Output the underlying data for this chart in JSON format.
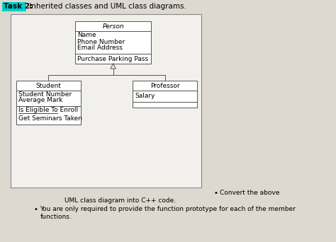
{
  "title_bold": "Task 2:",
  "title_normal": " Inherited classes and UML class diagrams.",
  "bg_color": "#ddd8d0",
  "diagram_bg": "#f0eeea",
  "box_color": "#ffffff",
  "border_color": "#555555",
  "person_name": "Person",
  "person_attrs": [
    "Name",
    "Phone Number",
    "Email Address"
  ],
  "person_methods": [
    "Purchase Parking Pass"
  ],
  "student_name": "Student",
  "student_attrs": [
    "Student Number",
    "Average Mark"
  ],
  "student_methods": [
    "Is Eligible To Enroll",
    "Get Seminars Taken"
  ],
  "professor_name": "Professor",
  "professor_attrs": [
    "Salary"
  ],
  "professor_methods": [],
  "bullet1_part1": "Convert the above",
  "bullet1_part2": "UML class diagram into C++ code.",
  "bullet2_line1": "You are only required to provide the function prototype for each of the member",
  "bullet2_line2": "functions.",
  "font_size": 6.5,
  "title_font_size": 7.5,
  "cyan_color": "#00cccc"
}
